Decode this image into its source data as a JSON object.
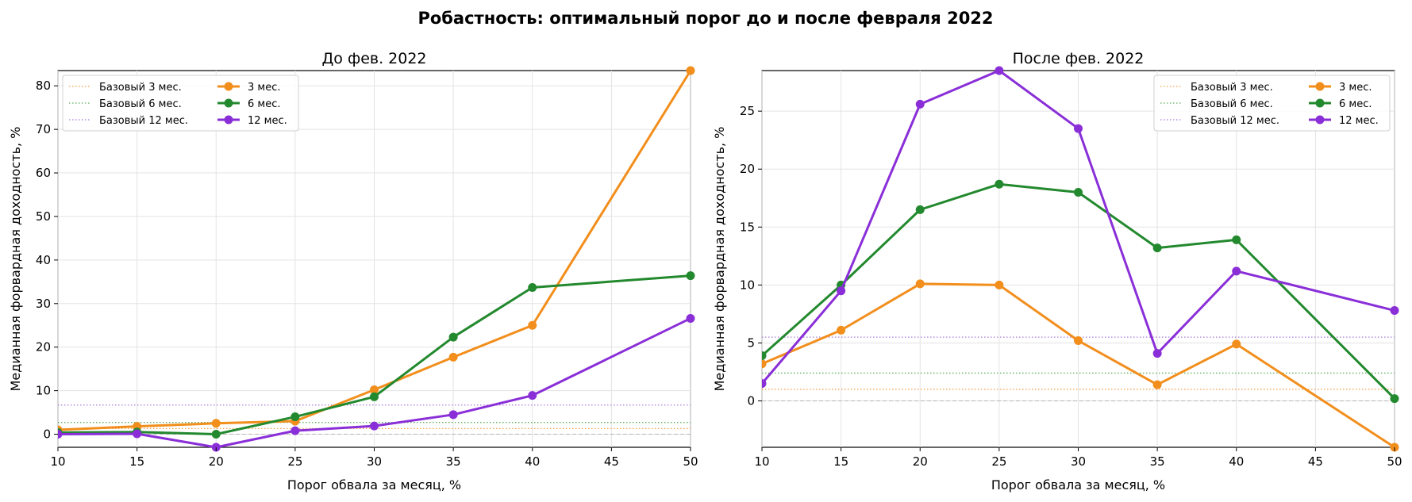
{
  "figure": {
    "suptitle": "Робастность: оптимальный порог до и после февраля 2022"
  },
  "chart_data": [
    {
      "type": "line",
      "title": "До фев. 2022",
      "xlabel": "Порог обвала за месяц, %",
      "ylabel": "Медианная форвардная доходность, %",
      "xlim": [
        10,
        50
      ],
      "ylim": [
        -3,
        83.5
      ],
      "xticks": [
        10,
        15,
        20,
        25,
        30,
        35,
        40,
        45,
        50
      ],
      "yticks": [
        0,
        10,
        20,
        30,
        40,
        50,
        60,
        70,
        80
      ],
      "grid": true,
      "legend_position": "top-left",
      "zero_line": 0,
      "baselines": [
        {
          "name": "Базовый 3 мес.",
          "value": 1.3,
          "color": "#f5a04a"
        },
        {
          "name": "Базовый 6 мес.",
          "value": 2.7,
          "color": "#5fb05f"
        },
        {
          "name": "Базовый 12 мес.",
          "value": 6.7,
          "color": "#a77ad8"
        }
      ],
      "series": [
        {
          "name": "3 мес.",
          "color": "#f28e1c",
          "x": [
            10,
            15,
            20,
            25,
            30,
            35,
            40,
            50
          ],
          "values": [
            1.0,
            1.8,
            2.5,
            3.0,
            10.2,
            17.7,
            25.0,
            83.5
          ]
        },
        {
          "name": "6 мес.",
          "color": "#23892e",
          "x": [
            10,
            15,
            20,
            25,
            30,
            35,
            40,
            50
          ],
          "values": [
            0.4,
            0.5,
            0.0,
            4.0,
            8.6,
            22.3,
            33.7,
            36.4
          ]
        },
        {
          "name": "12 мес.",
          "color": "#8a2fd8",
          "x": [
            10,
            15,
            20,
            25,
            30,
            35,
            40,
            50
          ],
          "values": [
            0.0,
            0.1,
            -3.0,
            0.8,
            1.9,
            4.5,
            8.9,
            26.6
          ]
        }
      ]
    },
    {
      "type": "line",
      "title": "После фев. 2022",
      "xlabel": "Порог обвала за месяц, %",
      "ylabel": "Медианная форвардная доходность, %",
      "xlim": [
        10,
        50
      ],
      "ylim": [
        -4,
        28.5
      ],
      "xticks": [
        10,
        15,
        20,
        25,
        30,
        35,
        40,
        45,
        50
      ],
      "yticks": [
        0,
        5,
        10,
        15,
        20,
        25
      ],
      "grid": true,
      "legend_position": "top-right",
      "zero_line": 0,
      "baselines": [
        {
          "name": "Базовый 3 мес.",
          "value": 1.0,
          "color": "#f5a04a"
        },
        {
          "name": "Базовый 6 мес.",
          "value": 2.4,
          "color": "#5fb05f"
        },
        {
          "name": "Базовый 12 мес.",
          "value": 5.5,
          "color": "#a77ad8"
        }
      ],
      "series": [
        {
          "name": "3 мес.",
          "color": "#f28e1c",
          "x": [
            10,
            15,
            20,
            25,
            30,
            35,
            40,
            50
          ],
          "values": [
            3.2,
            6.1,
            10.1,
            10.0,
            5.2,
            1.4,
            4.9,
            -4.0
          ]
        },
        {
          "name": "6 мес.",
          "color": "#23892e",
          "x": [
            10,
            15,
            20,
            25,
            30,
            35,
            40,
            50
          ],
          "values": [
            3.9,
            10.0,
            16.5,
            18.7,
            18.0,
            13.2,
            13.9,
            0.2
          ]
        },
        {
          "name": "12 мес.",
          "color": "#8a2fd8",
          "x": [
            10,
            15,
            20,
            25,
            30,
            35,
            40,
            50
          ],
          "values": [
            1.5,
            9.5,
            25.6,
            28.5,
            23.5,
            4.1,
            11.2,
            7.8
          ]
        }
      ]
    }
  ]
}
